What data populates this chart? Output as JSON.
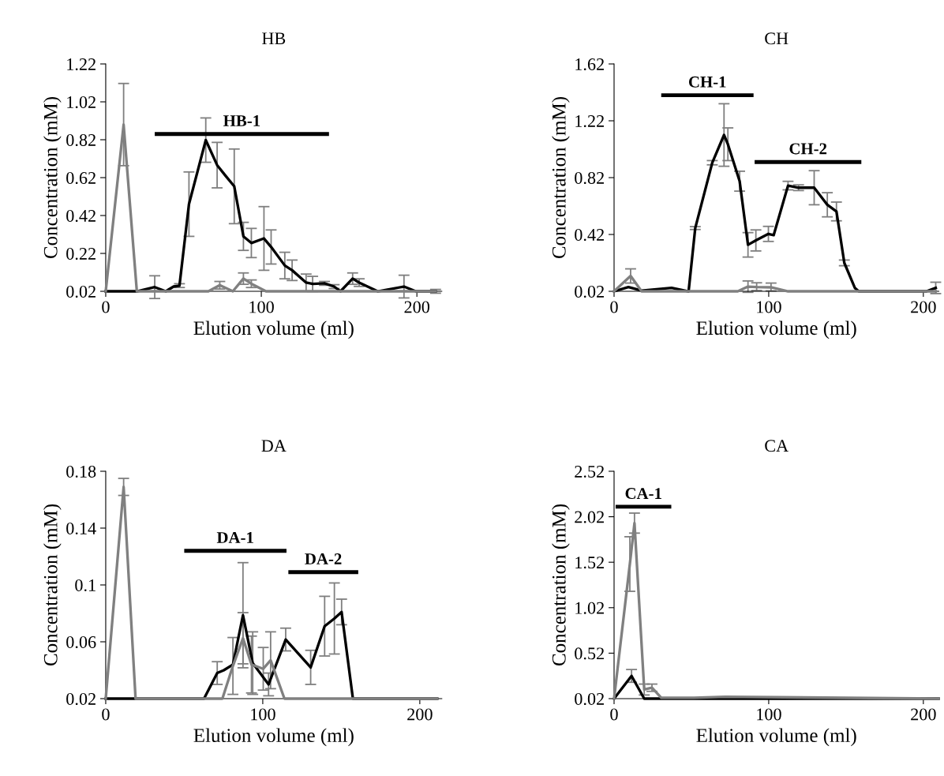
{
  "chart_data": [
    {
      "type": "line",
      "title": "HB",
      "xlabel": "Elution volume (ml)",
      "ylabel": "Concentration (mM)",
      "xlim": [
        0,
        216
      ],
      "xticks": [
        0,
        100,
        200
      ],
      "ylim": [
        0.02,
        1.22
      ],
      "yticks": [
        0.02,
        0.22,
        0.42,
        0.62,
        0.82,
        1.02,
        1.22
      ],
      "grid": false,
      "marker": "none",
      "line_style": "solid",
      "series": [
        {
          "name": "HB-1",
          "color": "#000000",
          "x": [
            31.5,
            143.5
          ],
          "values": [
            0.85,
            0.85
          ]
        },
        {
          "color": "#000000",
          "x": [
            0,
            20,
            31.5,
            38.6,
            43.6,
            47.4,
            53.5,
            64.3,
            71.6,
            77,
            82.6,
            88.5,
            93.6,
            101.7,
            106.3,
            115.1,
            119.8,
            128.8,
            133,
            140.6,
            146.8,
            150.9,
            158.7,
            162.9,
            174.8,
            191.7,
            199.3,
            212
          ],
          "values": [
            0.02,
            0.02,
            0.042,
            0.02,
            0.045,
            0.05,
            0.48,
            0.818,
            0.686,
            0.63,
            0.574,
            0.31,
            0.275,
            0.299,
            0.254,
            0.156,
            0.131,
            0.066,
            0.059,
            0.062,
            0.045,
            0.02,
            0.087,
            0.066,
            0.02,
            0.045,
            0.02,
            0.02
          ],
          "errors": [
            null,
            null,
            0.06,
            null,
            null,
            0.01,
            0.17,
            0.117,
            0.12,
            null,
            0.197,
            0.074,
            0.077,
            0.168,
            0.09,
            0.07,
            0.054,
            0.045,
            0.04,
            0.01,
            0.01,
            null,
            0.03,
            0.02,
            null,
            0.06,
            null,
            0.01
          ]
        },
        {
          "color": "#808080",
          "x": [
            0,
            11.5,
            20,
            60,
            66,
            73.3,
            81.7,
            88.5,
            93.6,
            103,
            212
          ],
          "values": [
            0.02,
            0.9,
            0.02,
            0.02,
            0.02,
            0.052,
            0.02,
            0.087,
            0.06,
            0.02,
            0.02
          ],
          "errors": [
            null,
            0.217,
            null,
            null,
            null,
            0.02,
            null,
            0.03,
            0.02,
            null,
            null
          ]
        }
      ]
    },
    {
      "type": "line",
      "title": "CH",
      "xlabel": "Elution volume (ml)",
      "ylabel": "Concentration (mM)",
      "xlim": [
        0,
        210
      ],
      "xticks": [
        0,
        100,
        200
      ],
      "ylim": [
        0.02,
        1.62
      ],
      "yticks": [
        0.02,
        0.42,
        0.82,
        1.22,
        1.62
      ],
      "grid": false,
      "marker": "none",
      "line_style": "solid",
      "series": [
        {
          "name": "CH-1",
          "color": "#000000",
          "x": [
            30.5,
            90.2
          ],
          "values": [
            1.4,
            1.4
          ]
        },
        {
          "name": "CH-2",
          "color": "#000000",
          "x": [
            90.9,
            159.9
          ],
          "values": [
            0.93,
            0.93
          ]
        },
        {
          "color": "#000000",
          "x": [
            0,
            9.3,
            17.8,
            37.2,
            48.2,
            52.5,
            63.5,
            71.1,
            73.6,
            81.2,
            86.6,
            91.7,
            99.8,
            103.2,
            112.5,
            119.3,
            129.4,
            137.9,
            143.8,
            148.9,
            155.7,
            158.2,
            202,
            208
          ],
          "values": [
            0.02,
            0.05,
            0.025,
            0.044,
            0.02,
            0.465,
            0.925,
            1.12,
            1.055,
            0.795,
            0.347,
            0.378,
            0.424,
            0.415,
            0.764,
            0.749,
            0.749,
            0.629,
            0.582,
            0.22,
            0.044,
            0.02,
            0.02,
            0.044
          ],
          "errors": [
            null,
            null,
            null,
            null,
            null,
            0.01,
            0.015,
            0.22,
            0.115,
            0.07,
            0.086,
            0.074,
            0.053,
            null,
            0.03,
            0.02,
            0.12,
            0.085,
            0.066,
            0.02,
            null,
            null,
            null,
            0.04
          ]
        },
        {
          "color": "#808080",
          "x": [
            0,
            10.7,
            17.8,
            80,
            86.6,
            92.2,
            101.5,
            112.5,
            208
          ],
          "values": [
            0.02,
            0.128,
            0.02,
            0.02,
            0.053,
            0.05,
            0.048,
            0.02,
            0.02
          ],
          "errors": [
            null,
            0.05,
            null,
            null,
            0.04,
            [
              0.025,
              0.03
            ],
            [
              0.025,
              0.03
            ],
            null,
            null
          ]
        }
      ]
    },
    {
      "type": "line",
      "title": "DA",
      "xlabel": "Elution volume (ml)",
      "ylabel": "Concentration (mM)",
      "xlim": [
        0,
        214
      ],
      "xticks": [
        0,
        100,
        200
      ],
      "ylim": [
        0.02,
        0.18
      ],
      "yticks": [
        0.02,
        0.06,
        0.1,
        0.14,
        0.18
      ],
      "grid": false,
      "marker": "none",
      "line_style": "solid",
      "series": [
        {
          "name": "DA-1",
          "color": "#000000",
          "x": [
            50,
            115.1
          ],
          "values": [
            0.124,
            0.124
          ]
        },
        {
          "name": "DA-2",
          "color": "#000000",
          "x": [
            116.3,
            160.8
          ],
          "values": [
            0.109,
            0.109
          ]
        },
        {
          "color": "#000000",
          "x": [
            0,
            62.6,
            71,
            75.2,
            81,
            87.4,
            93.6,
            103.7,
            114.6,
            130.5,
            139.4,
            145.6,
            150.2,
            157.4,
            211
          ],
          "values": [
            0.02,
            0.02,
            0.038,
            0.04,
            0.044,
            0.0787,
            0.045,
            0.03,
            0.0616,
            0.042,
            0.071,
            0.0764,
            0.081,
            0.02,
            0.02
          ],
          "errors": [
            null,
            null,
            0.008,
            null,
            null,
            0.037,
            0.022,
            0.008,
            0.008,
            0.012,
            0.021,
            0.025,
            0.009,
            null,
            null
          ]
        },
        {
          "color": "#808080",
          "x": [
            0,
            11.4,
            19,
            74.3,
            81,
            87.4,
            92.8,
            100.3,
            105,
            113.8,
            211
          ],
          "values": [
            0.02,
            0.169,
            0.02,
            0.02,
            0.043,
            0.0625,
            0.044,
            0.041,
            0.047,
            0.02,
            0.02
          ],
          "errors": [
            null,
            0.006,
            null,
            null,
            0.02,
            0.018,
            0.02,
            0.015,
            0.02,
            null,
            null
          ]
        }
      ]
    },
    {
      "type": "line",
      "title": "CA",
      "xlabel": "Elution volume (ml)",
      "ylabel": "Concentration (mM)",
      "xlim": [
        0,
        210
      ],
      "xticks": [
        0,
        100,
        200
      ],
      "ylim": [
        0.02,
        2.52
      ],
      "yticks": [
        0.02,
        0.52,
        1.02,
        1.52,
        2.02,
        2.52
      ],
      "grid": false,
      "marker": "none",
      "line_style": "solid",
      "series": [
        {
          "name": "CA-1",
          "color": "#000000",
          "x": [
            1,
            37
          ],
          "values": [
            2.13,
            2.13
          ]
        },
        {
          "color": "#000000",
          "x": [
            0,
            11.3,
            19.5,
            209.8
          ],
          "values": [
            0.02,
            0.27,
            0.02,
            0.02
          ],
          "errors": [
            null,
            0.07,
            null,
            null
          ]
        },
        {
          "color": "#808080",
          "x": [
            0,
            10.2,
            13.2,
            19.5,
            24.5,
            30.5,
            51.6,
            71.9,
            209.8
          ],
          "values": [
            0.02,
            1.5,
            1.95,
            0.12,
            0.14,
            0.03,
            0.03,
            0.04,
            0.02
          ],
          "errors": [
            null,
            0.3,
            0.11,
            0.06,
            0.04,
            null,
            null,
            null,
            null
          ]
        }
      ]
    }
  ]
}
